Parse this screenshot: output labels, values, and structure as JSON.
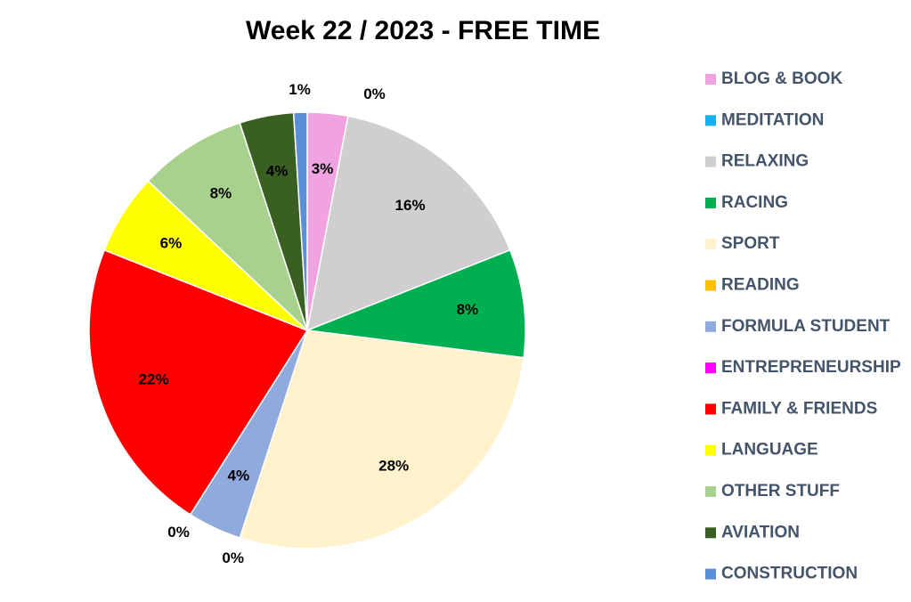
{
  "chart_data": {
    "type": "pie",
    "title": "Week 22 / 2023 - FREE TIME",
    "categories": [
      "BLOG & BOOK",
      "MEDITATION",
      "RELAXING",
      "RACING",
      "SPORT",
      "READING",
      "FORMULA STUDENT",
      "ENTREPRENEURSHIP",
      "FAMILY & FRIENDS",
      "LANGUAGE",
      "OTHER STUFF",
      "AVIATION",
      "CONSTRUCTION"
    ],
    "values": [
      3,
      0,
      16,
      8,
      28,
      0,
      4,
      0,
      22,
      6,
      8,
      4,
      1
    ],
    "value_labels": [
      "3%",
      "0%",
      "16%",
      "8%",
      "28%",
      "0%",
      "4%",
      "0%",
      "22%",
      "6%",
      "8%",
      "4%",
      "1%"
    ],
    "colors": [
      "#f0a3e0",
      "#14b0ef",
      "#d0cece",
      "#00b050",
      "#fff2cc",
      "#ffc000",
      "#8faadc",
      "#ff00ff",
      "#ff0000",
      "#ffff00",
      "#a9d18e",
      "#3a5f22",
      "#5b8fd8"
    ],
    "legend": "right"
  }
}
